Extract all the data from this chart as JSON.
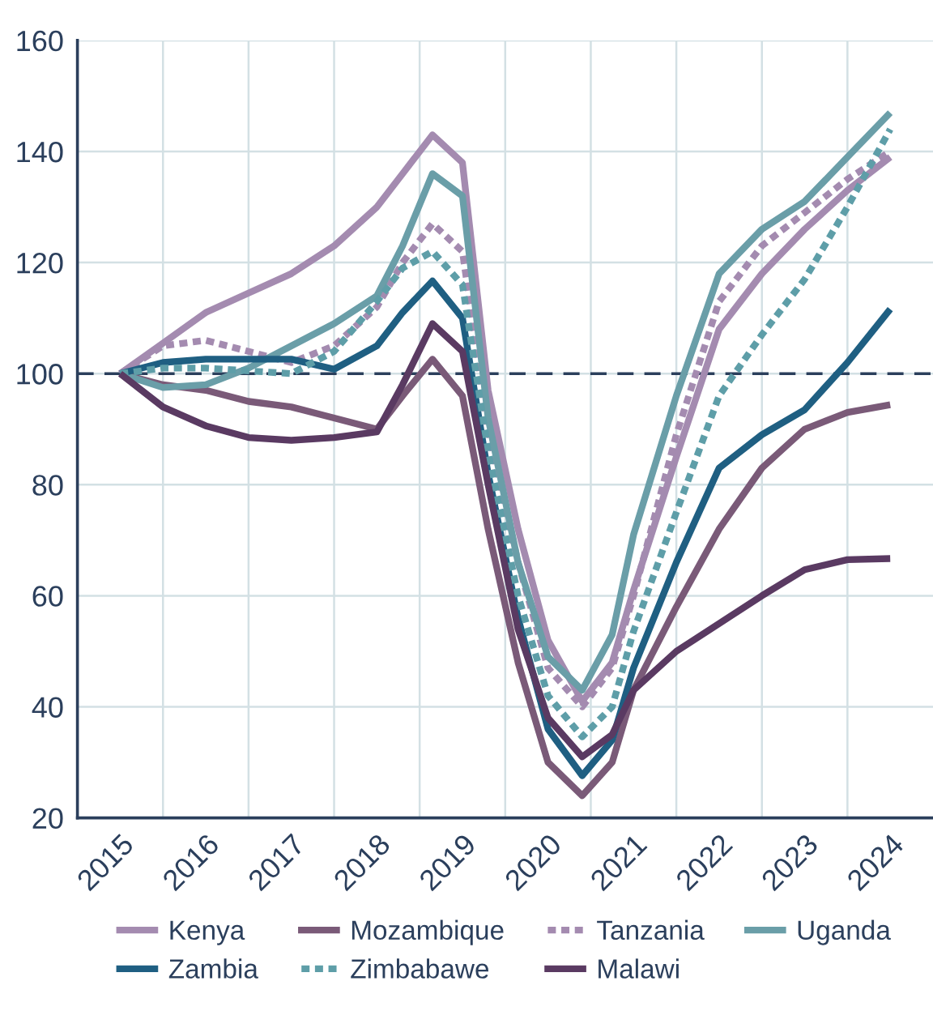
{
  "chart_data": {
    "type": "line",
    "x": [
      2015,
      2015.5,
      2016,
      2016.5,
      2017,
      2017.5,
      2018,
      2018.3,
      2018.65,
      2019,
      2019.3,
      2019.65,
      2020,
      2020.4,
      2020.75,
      2021,
      2021.5,
      2022,
      2022.5,
      2023,
      2023.5,
      2024
    ],
    "series": [
      {
        "name": "Kenya",
        "color": "#a48bb0",
        "line_style": "solid",
        "values": [
          100,
          105.5,
          111,
          114.5,
          118,
          123,
          130,
          136,
          143,
          138,
          97,
          72,
          52,
          41,
          48,
          61,
          85,
          108,
          118,
          126,
          133,
          139
        ]
      },
      {
        "name": "Mozambique",
        "color": "#7a5a78",
        "line_style": "solid",
        "values": [
          100,
          98,
          97,
          95,
          94,
          92,
          90,
          96,
          102.6,
          96,
          72,
          48,
          30,
          24,
          30,
          43,
          58,
          72,
          83,
          90,
          93,
          94.4
        ]
      },
      {
        "name": "Tanzania",
        "color": "#a48bb0",
        "line_style": "dotted",
        "values": [
          100,
          105,
          106,
          104,
          102,
          105,
          112,
          120,
          127,
          122,
          90,
          66,
          47,
          40,
          47,
          60,
          89,
          113,
          123,
          129,
          135,
          140
        ]
      },
      {
        "name": "Uganda",
        "color": "#6a9ea8",
        "line_style": "solid",
        "values": [
          100,
          97.5,
          98,
          101,
          105,
          109,
          114,
          123,
          136,
          132,
          92,
          66,
          49,
          43,
          53,
          71,
          96,
          118,
          126,
          131,
          139,
          147
        ]
      },
      {
        "name": "Zambia",
        "color": "#1f5f82",
        "line_style": "solid",
        "values": [
          100,
          102,
          102.6,
          102.6,
          102.6,
          100.8,
          105,
          111,
          116.7,
          110,
          82,
          56,
          36,
          27.6,
          34,
          47,
          66,
          83,
          89,
          93.5,
          102,
          111.6
        ]
      },
      {
        "name": "Zimbabawe",
        "color": "#5e9ea8",
        "line_style": "dotted",
        "values": [
          100,
          101,
          101,
          100.5,
          100,
          104,
          113,
          119,
          122,
          116,
          86,
          60,
          42,
          34.6,
          40,
          53.6,
          75,
          96,
          107,
          117,
          130,
          144
        ]
      },
      {
        "name": "Malawi",
        "color": "#5a3a62",
        "line_style": "solid",
        "values": [
          100,
          94,
          90.6,
          88.5,
          88,
          88.5,
          89.5,
          98,
          109,
          104,
          80,
          54,
          38,
          31,
          35,
          43,
          50,
          55,
          60,
          64.7,
          66.5,
          66.7
        ]
      }
    ],
    "xlim": [
      2014.5,
      2024.5
    ],
    "xticks": [
      {
        "value": 2015,
        "label": "2015"
      },
      {
        "value": 2015.5,
        "label": null
      },
      {
        "value": 2016,
        "label": "2016"
      },
      {
        "value": 2016.5,
        "label": null
      },
      {
        "value": 2017,
        "label": "2017"
      },
      {
        "value": 2017.5,
        "label": null
      },
      {
        "value": 2018,
        "label": "2018"
      },
      {
        "value": 2018.5,
        "label": null
      },
      {
        "value": 2019,
        "label": "2019"
      },
      {
        "value": 2019.5,
        "label": null
      },
      {
        "value": 2020,
        "label": "2020"
      },
      {
        "value": 2020.5,
        "label": null
      },
      {
        "value": 2021,
        "label": "2021"
      },
      {
        "value": 2021.5,
        "label": null
      },
      {
        "value": 2022,
        "label": "2022"
      },
      {
        "value": 2022.5,
        "label": null
      },
      {
        "value": 2023,
        "label": "2023"
      },
      {
        "value": 2023.5,
        "label": null
      },
      {
        "value": 2024,
        "label": "2024"
      }
    ],
    "ylim": [
      20,
      160
    ],
    "yticks": [
      20,
      40,
      60,
      80,
      100,
      120,
      140,
      160
    ],
    "grid": true,
    "legend": "bottom",
    "ref_lines": [
      {
        "axis": "y",
        "value": 100,
        "color": "#2b3f5c",
        "line_style": "dashed"
      }
    ]
  }
}
